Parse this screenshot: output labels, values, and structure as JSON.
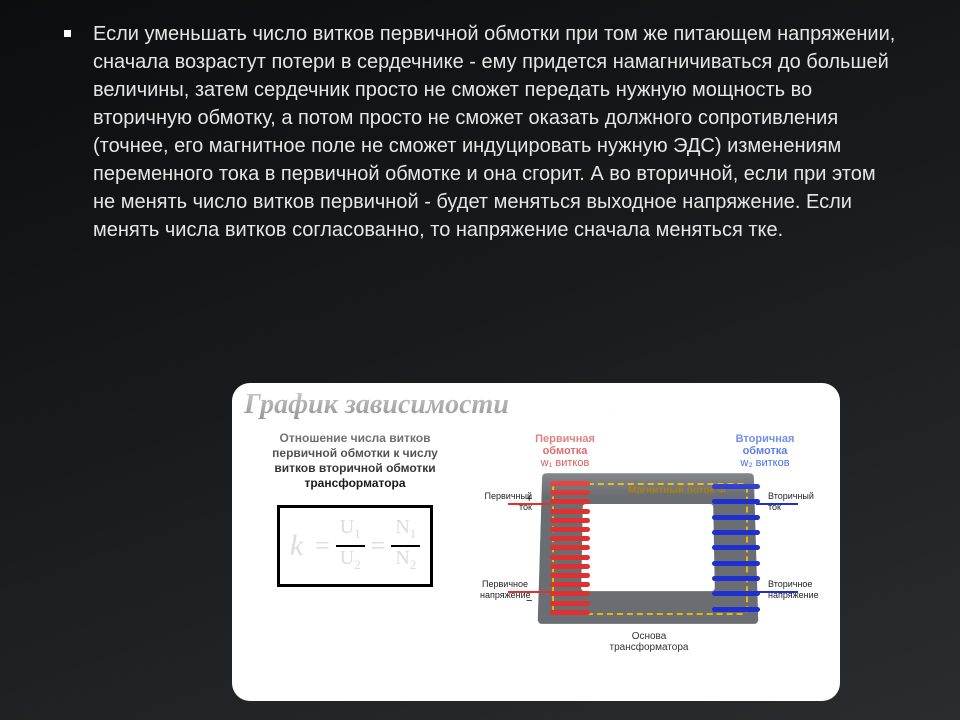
{
  "bullet": {
    "text": "Если уменьшать число витков первичной обмотки при том же питающем напряжении, сначала возрастут потери в сердечнике - ему придется намагничиваться до большей величины, затем сердечник просто не сможет передать нужную мощность во вторичную обмотку, а потом просто не сможет оказать должного сопротивления (точнее, его магнитное поле не сможет индуцировать нужную ЭДС) изменениям переменного тока в первичной обмотке и она сгорит. А во вторичной, если при этом не менять число витков первичной - будет меняться выходное напряжение. Если менять числа витков согласованно, то напряжение сначала меняться                                                                                   тке."
  },
  "figure": {
    "title": "График зависимости",
    "caption": "Отношение числа витков первичной обмотки к числу витков вторичной обмотки трансформатора",
    "formula": {
      "k": "k",
      "eq": "=",
      "U1": "U",
      "U1s": "1",
      "U2": "U",
      "U2s": "2",
      "N1": "N",
      "N1s": "1",
      "N2": "N",
      "N2s": "2"
    },
    "labels": {
      "primary": "Первичная обмотка",
      "primarySub": "w₁ витков",
      "secondary": "Вторичная обмотка",
      "secondarySub": "w₂ витков",
      "flux": "Магнитный поток Ф",
      "pcur": "Первичный ток",
      "pvolt": "Первичное напряжение",
      "scur": "Вторичный ток",
      "svolt": "Вторичное напряжение",
      "osnova": "Основа трансформатора"
    },
    "colors": {
      "primaryCoil": "#e03030",
      "secondaryCoil": "#2030d0",
      "core": "#6a6d72",
      "flux": "#e6b800"
    },
    "primaryTurns": 15,
    "secondaryTurns": 9
  }
}
